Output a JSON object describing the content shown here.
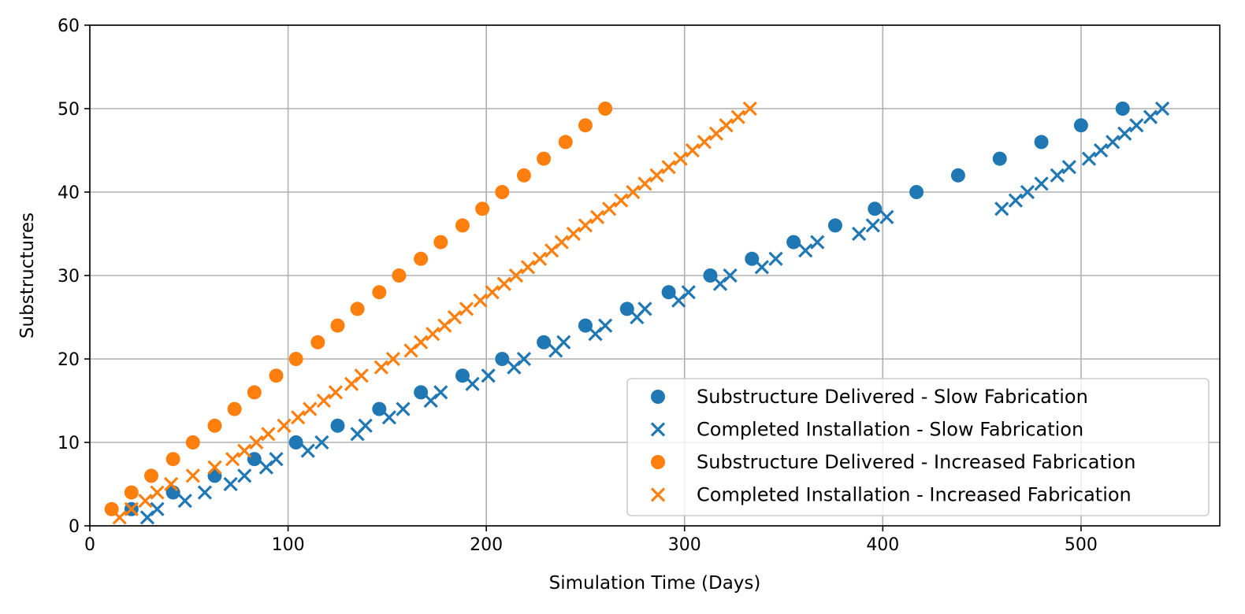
{
  "chart_data": {
    "type": "scatter",
    "title": "",
    "xlabel": "Simulation Time (Days)",
    "ylabel": "Substructures",
    "xlim": [
      0,
      570
    ],
    "ylim": [
      0,
      60
    ],
    "xticks": [
      0,
      100,
      200,
      300,
      400,
      500
    ],
    "yticks": [
      0,
      10,
      20,
      30,
      40,
      50,
      60
    ],
    "xtick_labels": [
      "0",
      "100",
      "200",
      "300",
      "400",
      "500"
    ],
    "ytick_labels": [
      "0",
      "10",
      "20",
      "30",
      "40",
      "50",
      "60"
    ],
    "grid": true,
    "legend_position": "lower-right",
    "series": [
      {
        "name": "Substructure Delivered - Slow Fabrication",
        "marker": "circle",
        "color": "#1f77b4",
        "points": [
          [
            21,
            2
          ],
          [
            42,
            4
          ],
          [
            63,
            6
          ],
          [
            83,
            8
          ],
          [
            104,
            10
          ],
          [
            125,
            12
          ],
          [
            146,
            14
          ],
          [
            167,
            16
          ],
          [
            188,
            18
          ],
          [
            208,
            20
          ],
          [
            229,
            22
          ],
          [
            250,
            24
          ],
          [
            271,
            26
          ],
          [
            292,
            28
          ],
          [
            313,
            30
          ],
          [
            334,
            32
          ],
          [
            355,
            34
          ],
          [
            376,
            36
          ],
          [
            396,
            38
          ],
          [
            417,
            40
          ],
          [
            438,
            42
          ],
          [
            459,
            44
          ],
          [
            480,
            46
          ],
          [
            500,
            48
          ],
          [
            521,
            50
          ]
        ]
      },
      {
        "name": "Completed Installation - Slow Fabrication",
        "marker": "x",
        "color": "#1f77b4",
        "points": [
          [
            29,
            1
          ],
          [
            34,
            2
          ],
          [
            48,
            3
          ],
          [
            58,
            4
          ],
          [
            71,
            5
          ],
          [
            78,
            6
          ],
          [
            89,
            7
          ],
          [
            94,
            8
          ],
          [
            110,
            9
          ],
          [
            117,
            10
          ],
          [
            135,
            11
          ],
          [
            139,
            12
          ],
          [
            151,
            13
          ],
          [
            158,
            14
          ],
          [
            172,
            15
          ],
          [
            177,
            16
          ],
          [
            193,
            17
          ],
          [
            201,
            18
          ],
          [
            214,
            19
          ],
          [
            219,
            20
          ],
          [
            235,
            21
          ],
          [
            239,
            22
          ],
          [
            255,
            23
          ],
          [
            260,
            24
          ],
          [
            276,
            25
          ],
          [
            280,
            26
          ],
          [
            297,
            27
          ],
          [
            302,
            28
          ],
          [
            318,
            29
          ],
          [
            323,
            30
          ],
          [
            339,
            31
          ],
          [
            346,
            32
          ],
          [
            361,
            33
          ],
          [
            367,
            34
          ],
          [
            388,
            35
          ],
          [
            395,
            36
          ],
          [
            402,
            37
          ],
          [
            460,
            38
          ],
          [
            467,
            39
          ],
          [
            473,
            40
          ],
          [
            480,
            41
          ],
          [
            488,
            42
          ],
          [
            494,
            43
          ],
          [
            504,
            44
          ],
          [
            510,
            45
          ],
          [
            516,
            46
          ],
          [
            522,
            47
          ],
          [
            528,
            48
          ],
          [
            535,
            49
          ],
          [
            541,
            50
          ]
        ]
      },
      {
        "name": "Substructure Delivered - Increased Fabrication",
        "marker": "circle",
        "color": "#ff7f0e",
        "points": [
          [
            11,
            2
          ],
          [
            21,
            4
          ],
          [
            31,
            6
          ],
          [
            42,
            8
          ],
          [
            52,
            10
          ],
          [
            63,
            12
          ],
          [
            73,
            14
          ],
          [
            83,
            16
          ],
          [
            94,
            18
          ],
          [
            104,
            20
          ],
          [
            115,
            22
          ],
          [
            125,
            24
          ],
          [
            135,
            26
          ],
          [
            146,
            28
          ],
          [
            156,
            30
          ],
          [
            167,
            32
          ],
          [
            177,
            34
          ],
          [
            188,
            36
          ],
          [
            198,
            38
          ],
          [
            208,
            40
          ],
          [
            219,
            42
          ],
          [
            229,
            44
          ],
          [
            240,
            46
          ],
          [
            250,
            48
          ],
          [
            260,
            50
          ]
        ]
      },
      {
        "name": "Completed Installation - Increased Fabrication",
        "marker": "x",
        "color": "#ff7f0e",
        "points": [
          [
            15,
            1
          ],
          [
            21,
            2
          ],
          [
            28,
            3
          ],
          [
            34,
            4
          ],
          [
            41,
            5
          ],
          [
            52,
            6
          ],
          [
            63,
            7
          ],
          [
            72,
            8
          ],
          [
            78,
            9
          ],
          [
            84,
            10
          ],
          [
            90,
            11
          ],
          [
            98,
            12
          ],
          [
            105,
            13
          ],
          [
            111,
            14
          ],
          [
            118,
            15
          ],
          [
            124,
            16
          ],
          [
            132,
            17
          ],
          [
            137,
            18
          ],
          [
            147,
            19
          ],
          [
            153,
            20
          ],
          [
            162,
            21
          ],
          [
            167,
            22
          ],
          [
            173,
            23
          ],
          [
            179,
            24
          ],
          [
            184,
            25
          ],
          [
            190,
            26
          ],
          [
            197,
            27
          ],
          [
            203,
            28
          ],
          [
            209,
            29
          ],
          [
            215,
            30
          ],
          [
            221,
            31
          ],
          [
            227,
            32
          ],
          [
            233,
            33
          ],
          [
            238,
            34
          ],
          [
            244,
            35
          ],
          [
            250,
            36
          ],
          [
            256,
            37
          ],
          [
            262,
            38
          ],
          [
            268,
            39
          ],
          [
            274,
            40
          ],
          [
            280,
            41
          ],
          [
            286,
            42
          ],
          [
            292,
            43
          ],
          [
            298,
            44
          ],
          [
            304,
            45
          ],
          [
            310,
            46
          ],
          [
            316,
            47
          ],
          [
            321,
            48
          ],
          [
            327,
            49
          ],
          [
            333,
            50
          ]
        ]
      }
    ]
  }
}
